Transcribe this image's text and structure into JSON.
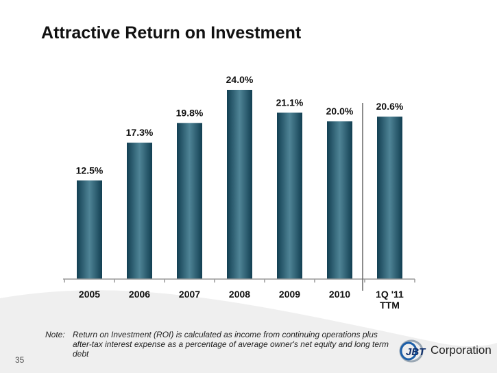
{
  "title": "Attractive Return on Investment",
  "chart_data": {
    "type": "bar",
    "title": "Attractive Return on Investment",
    "categories": [
      "2005",
      "2006",
      "2007",
      "2008",
      "2009",
      "2010",
      "1Q '11 TTM"
    ],
    "category_lines": [
      [
        "2005"
      ],
      [
        "2006"
      ],
      [
        "2007"
      ],
      [
        "2008"
      ],
      [
        "2009"
      ],
      [
        "2010"
      ],
      [
        "1Q '11",
        "TTM"
      ]
    ],
    "values": [
      12.5,
      17.3,
      19.8,
      24.0,
      21.1,
      20.0,
      20.6
    ],
    "data_labels": [
      "12.5%",
      "17.3%",
      "19.8%",
      "24.0%",
      "21.1%",
      "20.0%",
      "20.6%"
    ],
    "unit": "%",
    "ylim": [
      0,
      25
    ],
    "grid": false,
    "bar_color": "#2a6478",
    "separator_before_category": "1Q '11 TTM"
  },
  "note": {
    "label": "Note:",
    "text": "Return on Investment (ROI) is calculated as income from continuing operations plus after-tax interest expense as a percentage of average owner's net equity and long term debt"
  },
  "page_number": "35",
  "logo": {
    "mark": "JBT",
    "text": "Corporation"
  }
}
